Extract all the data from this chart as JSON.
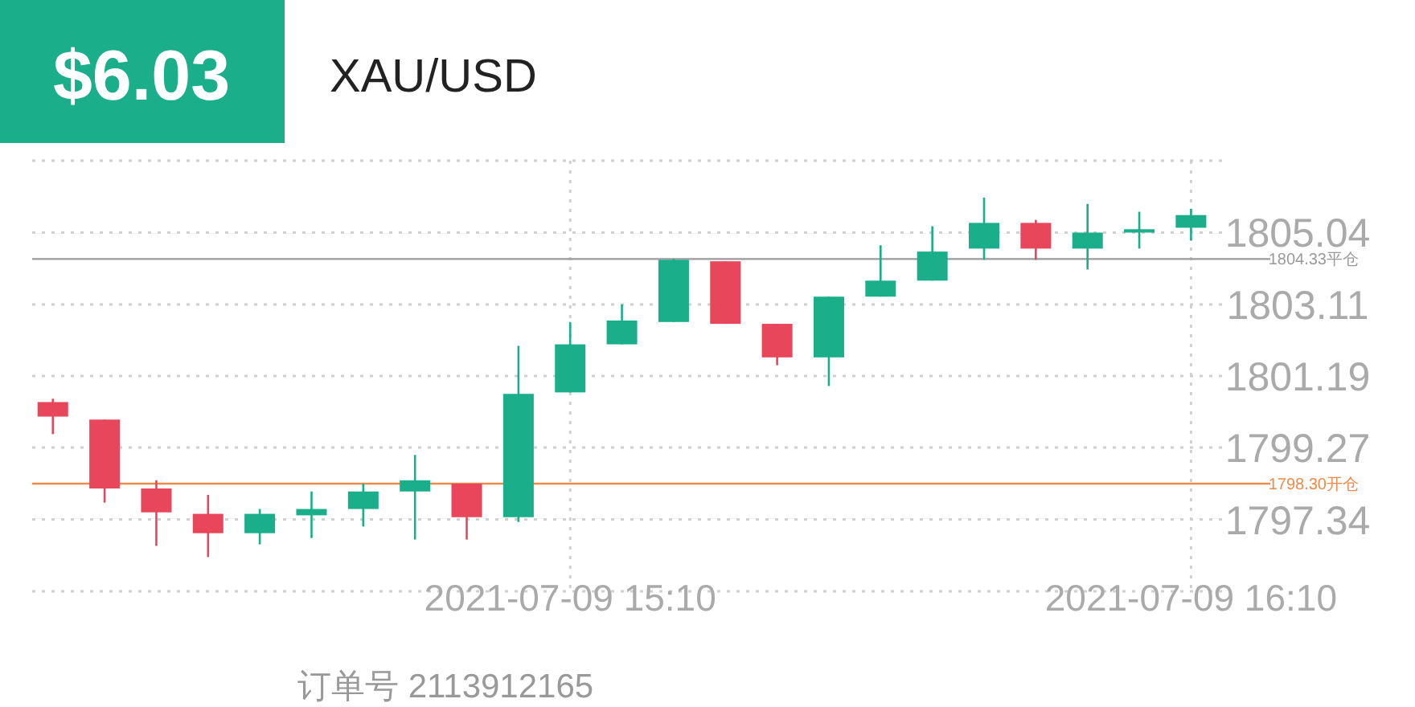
{
  "chart_data": {
    "type": "candlestick",
    "title": "XAU/USD",
    "subtitle": "$6.03",
    "annotations": [
      "订单号 2113912165"
    ],
    "x": [
      "2021-07-09T14:20",
      "2021-07-09T14:25",
      "2021-07-09T14:30",
      "2021-07-09T14:35",
      "2021-07-09T14:40",
      "2021-07-09T14:45",
      "2021-07-09T14:50",
      "2021-07-09T14:55",
      "2021-07-09T15:00",
      "2021-07-09T15:05",
      "2021-07-09T15:10",
      "2021-07-09T15:15",
      "2021-07-09T15:20",
      "2021-07-09T15:25",
      "2021-07-09T15:30",
      "2021-07-09T15:35",
      "2021-07-09T15:40",
      "2021-07-09T15:45",
      "2021-07-09T15:50",
      "2021-07-09T15:55",
      "2021-07-09T16:00",
      "2021-07-09T16:05",
      "2021-07-09T16:10"
    ],
    "ohlc": [
      [
        1800.49,
        1800.58,
        1799.63,
        1800.1
      ],
      [
        1800.02,
        1800.02,
        1797.79,
        1798.17
      ],
      [
        1798.17,
        1798.39,
        1796.63,
        1797.53
      ],
      [
        1797.49,
        1798.0,
        1796.33,
        1796.97
      ],
      [
        1796.97,
        1797.62,
        1796.67,
        1797.49
      ],
      [
        1797.45,
        1798.09,
        1796.84,
        1797.62
      ],
      [
        1797.62,
        1798.3,
        1797.15,
        1798.09
      ],
      [
        1798.09,
        1799.07,
        1796.8,
        1798.39
      ],
      [
        1798.3,
        1798.3,
        1796.8,
        1797.4
      ],
      [
        1797.4,
        1802.0,
        1797.27,
        1800.71
      ],
      [
        1800.75,
        1802.64,
        1800.75,
        1802.04
      ],
      [
        1802.04,
        1803.11,
        1802.04,
        1802.68
      ],
      [
        1802.64,
        1804.33,
        1802.64,
        1804.31
      ],
      [
        1804.27,
        1804.27,
        1802.59,
        1802.59
      ],
      [
        1802.59,
        1802.59,
        1801.48,
        1801.69
      ],
      [
        1801.69,
        1803.32,
        1800.92,
        1803.32
      ],
      [
        1803.32,
        1804.7,
        1803.32,
        1803.75
      ],
      [
        1803.75,
        1805.21,
        1803.75,
        1804.53
      ],
      [
        1804.61,
        1805.98,
        1804.31,
        1805.3
      ],
      [
        1805.3,
        1805.38,
        1804.31,
        1804.61
      ],
      [
        1804.61,
        1805.81,
        1804.05,
        1805.04
      ],
      [
        1805.04,
        1805.6,
        1804.61,
        1805.13
      ],
      [
        1805.17,
        1805.68,
        1804.83,
        1805.51
      ]
    ],
    "colors": [
      "#e8465a",
      "#e8465a",
      "#e8465a",
      "#e8465a",
      "#1aae8a",
      "#1aae8a",
      "#1aae8a",
      "#1aae8a",
      "#e8465a",
      "#1aae8a",
      "#1aae8a",
      "#1aae8a",
      "#1aae8a",
      "#e8465a",
      "#e8465a",
      "#1aae8a",
      "#1aae8a",
      "#1aae8a",
      "#1aae8a",
      "#e8465a",
      "#1aae8a",
      "#1aae8a",
      "#1aae8a"
    ],
    "xlim": [
      "2021-07-09T14:18",
      "2021-07-09T16:13"
    ],
    "xticks": [
      {
        "value": "2021-07-09T15:10",
        "label": "2021-07-09 15:10"
      },
      {
        "value": "2021-07-09T16:10",
        "label": "2021-07-09 16:10"
      }
    ],
    "ylim": [
      1795.41,
      1806.97
    ],
    "yticks": [
      {
        "value": 1795.41,
        "label": null
      },
      1797.34,
      1799.27,
      1801.19,
      1803.11,
      1805.04,
      {
        "value": 1806.97,
        "label": null
      }
    ],
    "ref_lines": [
      {
        "axis": "y",
        "value": 1804.33,
        "label": "1804.33平仓",
        "color": "#9a9a9a"
      },
      {
        "axis": "y",
        "value": 1798.3,
        "label": "1798.30开仓",
        "color": "#f08a4b"
      }
    ],
    "grid": true
  }
}
